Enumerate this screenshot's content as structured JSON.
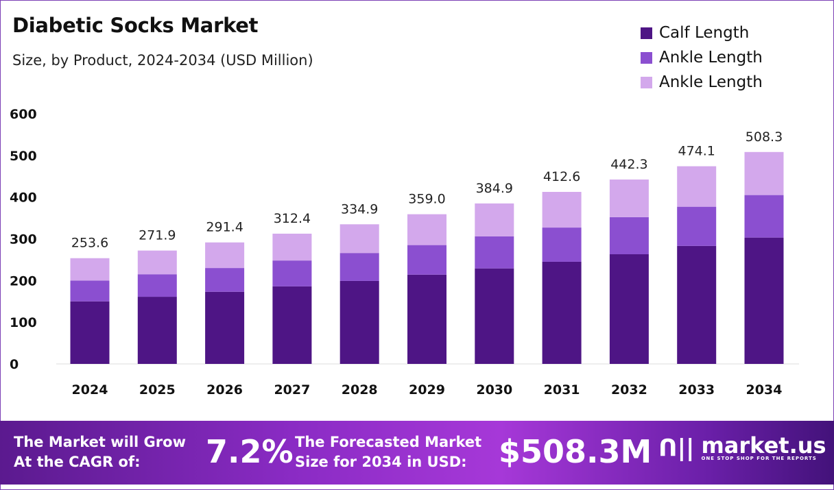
{
  "chart_data": {
    "type": "bar",
    "stacked": true,
    "title": "Diabetic Socks Market",
    "subtitle": "Size, by Product, 2024-2034 (USD Million)",
    "categories": [
      "2024",
      "2025",
      "2026",
      "2027",
      "2028",
      "2029",
      "2030",
      "2031",
      "2032",
      "2033",
      "2034"
    ],
    "series": [
      {
        "name": "Calf Length",
        "color": "#4e1585",
        "values": [
          150,
          161,
          173,
          186,
          199,
          214,
          229,
          245,
          263,
          283,
          303
        ]
      },
      {
        "name": "Ankle Length",
        "color": "#8b4fd0",
        "values": [
          50,
          54,
          57,
          62,
          67,
          71,
          77,
          82,
          89,
          94,
          102
        ]
      },
      {
        "name": "Ankle Length",
        "color": "#d3a8ec",
        "values": [
          53.6,
          56.9,
          61.4,
          64.4,
          68.9,
          74,
          78.9,
          85.6,
          90.3,
          97.1,
          103.3
        ]
      }
    ],
    "totals": [
      "253.6",
      "271.9",
      "291.4",
      "312.4",
      "334.9",
      "359.0",
      "384.9",
      "412.6",
      "442.3",
      "474.1",
      "508.3"
    ],
    "ylim": [
      0,
      600
    ],
    "yticks": [
      "0",
      "100",
      "200",
      "300",
      "400",
      "500",
      "600"
    ],
    "grid": false,
    "legend": "top-right"
  },
  "footer": {
    "cagr_label_1": "The Market will Grow",
    "cagr_label_2": "At the CAGR of:",
    "cagr_value": "7.2%",
    "forecast_label_1": "The Forecasted Market",
    "forecast_label_2": "Size for 2034 in USD:",
    "forecast_value": "$508.3M",
    "brand": "market.us",
    "tagline": "ONE STOP SHOP FOR THE REPORTS"
  }
}
